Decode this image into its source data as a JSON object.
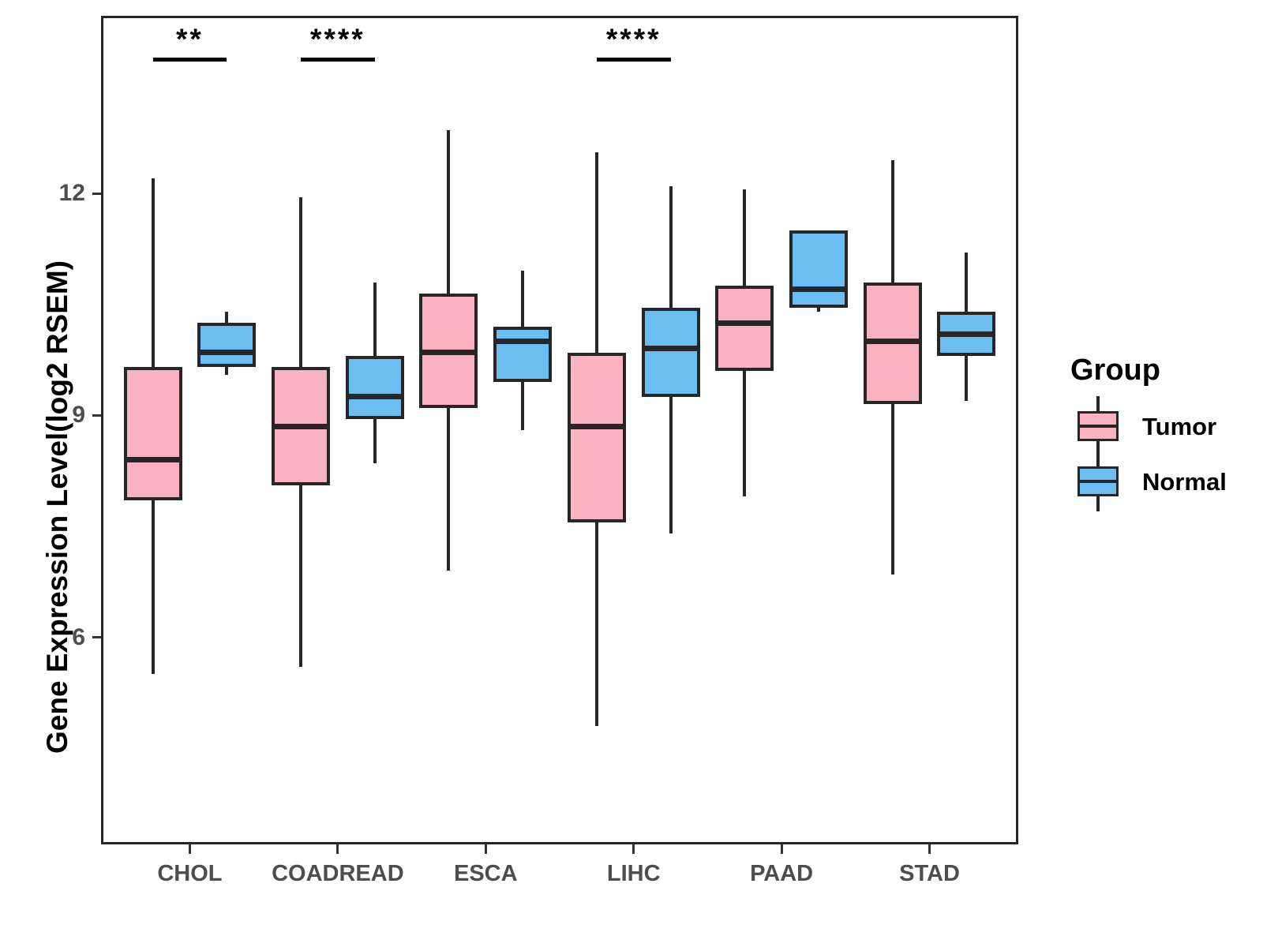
{
  "chart_data": {
    "type": "boxplot",
    "title": "",
    "xlabel": "",
    "ylabel": "Gene Expression Level(log2 RSEM)",
    "categories": [
      "CHOL",
      "COADREAD",
      "ESCA",
      "LIHC",
      "PAAD",
      "STAD"
    ],
    "y_ticks": [
      12,
      9,
      6
    ],
    "ylim": [
      3.2,
      14.4
    ],
    "grid": "off",
    "legend_position": "right",
    "legend": {
      "title": "Group",
      "entries": [
        {
          "label": "Tumor",
          "color": "#FAB2C2"
        },
        {
          "label": "Normal",
          "color": "#6CBEF2"
        }
      ]
    },
    "groups": [
      {
        "name": "Tumor",
        "fill": "#FAB2C2",
        "boxes": [
          {
            "category": "CHOL",
            "min": 5.5,
            "q1": 7.85,
            "median": 8.4,
            "q3": 9.65,
            "max": 12.2
          },
          {
            "category": "COADREAD",
            "min": 5.6,
            "q1": 8.05,
            "median": 8.85,
            "q3": 9.65,
            "max": 11.95
          },
          {
            "category": "ESCA",
            "min": 6.9,
            "q1": 9.1,
            "median": 9.85,
            "q3": 10.65,
            "max": 12.85
          },
          {
            "category": "LIHC",
            "min": 4.8,
            "q1": 7.55,
            "median": 8.85,
            "q3": 9.85,
            "max": 12.55
          },
          {
            "category": "PAAD",
            "min": 7.9,
            "q1": 9.6,
            "median": 10.25,
            "q3": 10.75,
            "max": 12.05
          },
          {
            "category": "STAD",
            "min": 6.85,
            "q1": 9.15,
            "median": 10.0,
            "q3": 10.8,
            "max": 12.45
          }
        ]
      },
      {
        "name": "Normal",
        "fill": "#6CBEF2",
        "boxes": [
          {
            "category": "CHOL",
            "min": 9.55,
            "q1": 9.65,
            "median": 9.85,
            "q3": 10.25,
            "max": 10.4
          },
          {
            "category": "COADREAD",
            "min": 8.35,
            "q1": 8.95,
            "median": 9.25,
            "q3": 9.8,
            "max": 10.8
          },
          {
            "category": "ESCA",
            "min": 8.8,
            "q1": 9.45,
            "median": 10.0,
            "q3": 10.2,
            "max": 10.95
          },
          {
            "category": "LIHC",
            "min": 7.4,
            "q1": 9.25,
            "median": 9.9,
            "q3": 10.45,
            "max": 12.1
          },
          {
            "category": "PAAD",
            "min": 10.4,
            "q1": 10.45,
            "median": 10.7,
            "q3": 11.5,
            "max": 11.5
          },
          {
            "category": "STAD",
            "min": 9.2,
            "q1": 9.8,
            "median": 10.1,
            "q3": 10.4,
            "max": 11.2
          }
        ]
      }
    ],
    "significance": [
      {
        "category": "CHOL",
        "stars": "**"
      },
      {
        "category": "COADREAD",
        "stars": "****"
      },
      {
        "category": "LIHC",
        "stars": "****"
      }
    ],
    "colors": {
      "line": "#262626",
      "axis_text": "#4D4D4D",
      "text": "#000000",
      "background": "#FFFFFF"
    }
  }
}
